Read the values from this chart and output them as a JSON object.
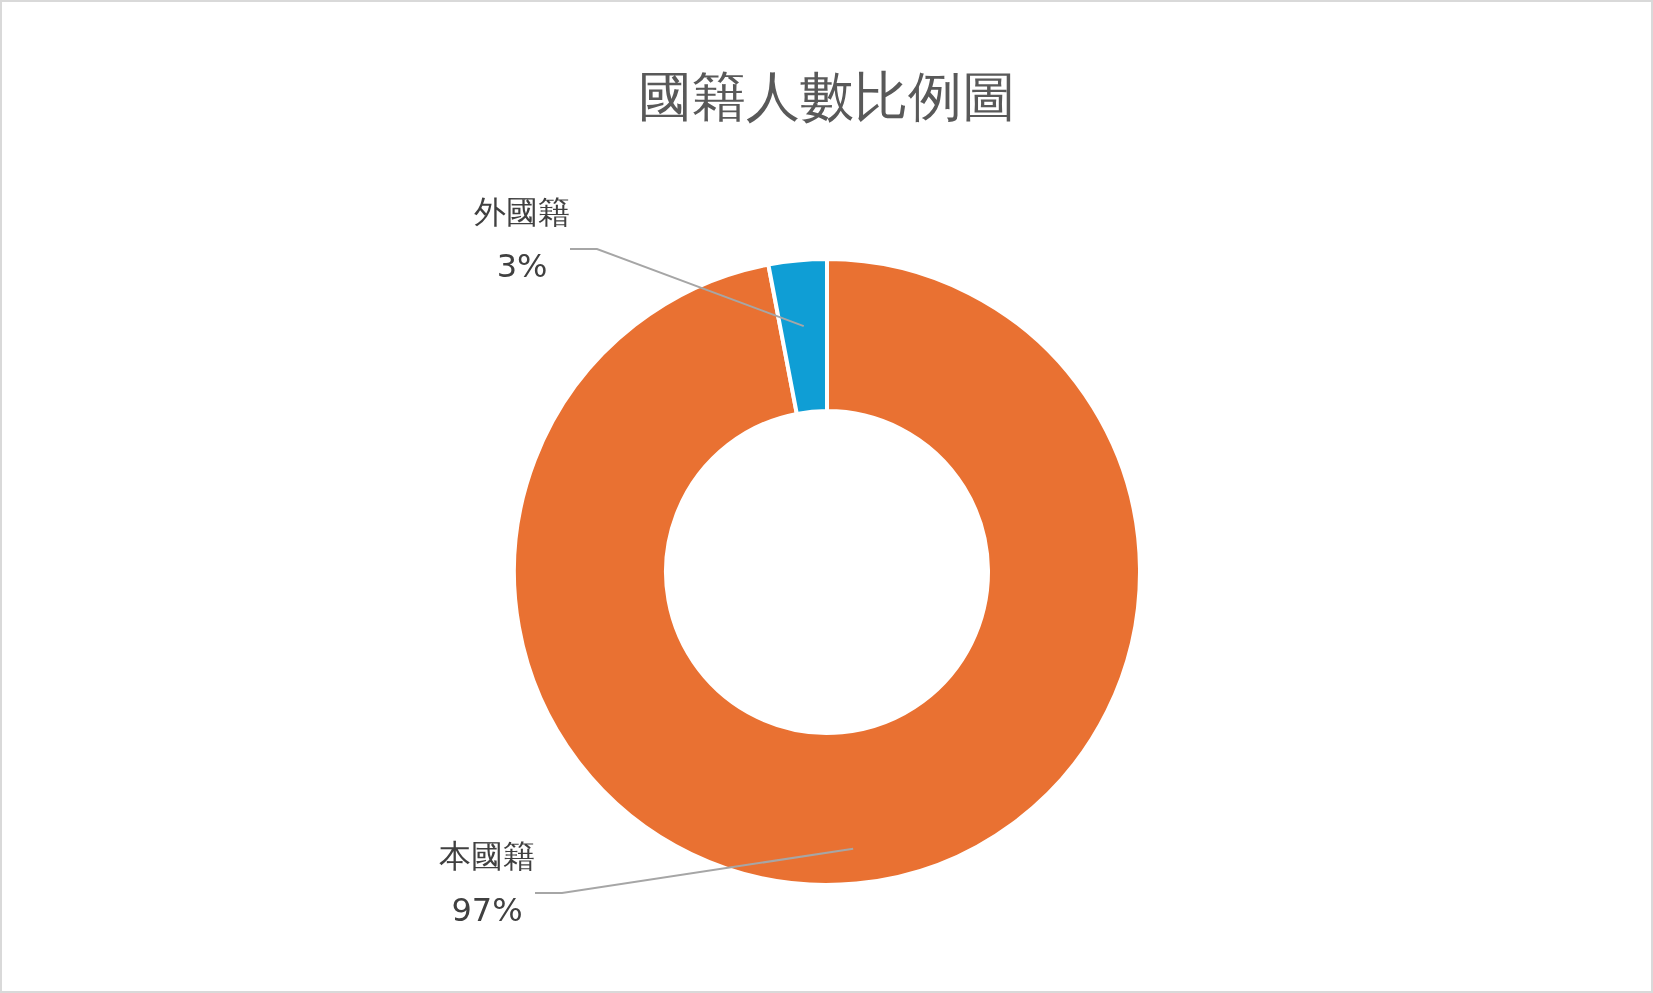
{
  "chart_data": {
    "type": "donut",
    "title": "國籍人數比例圖",
    "categories": [
      "本國籍",
      "外國籍"
    ],
    "values": [
      97,
      3
    ],
    "colors": [
      "#e97132",
      "#0f9ed5"
    ],
    "value_labels": [
      "97%",
      "3%"
    ]
  }
}
